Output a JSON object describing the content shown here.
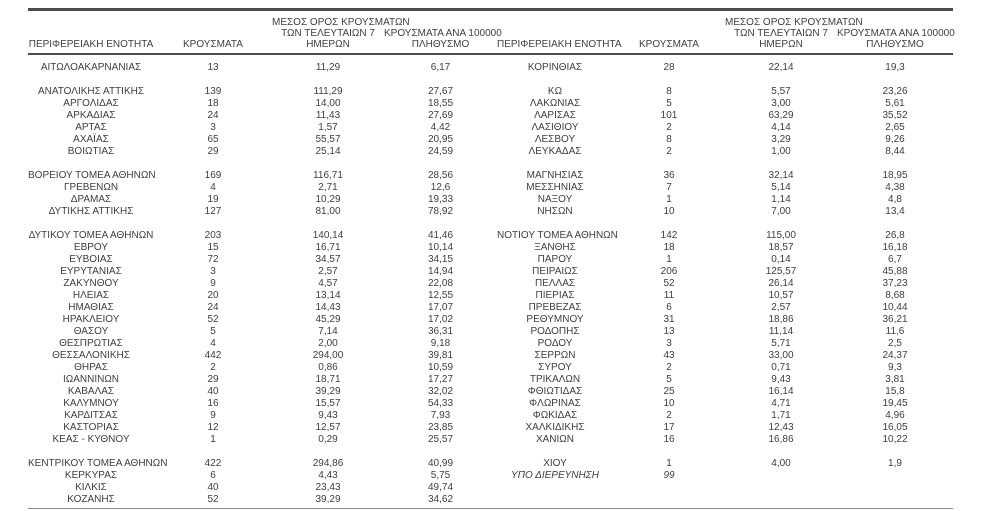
{
  "colors": {
    "text": "#3e3e3e",
    "rule": "#4b4b4b"
  },
  "table": {
    "column_headers": {
      "region": "ΠΕΡΙΦΕΡΕΙΑΚΗ ΕΝΟΤΗΤΑ",
      "cases": "ΚΡΟΥΣΜΑΤΑ",
      "avg7_lines": [
        "ΜΕΣΟΣ ΟΡΟΣ ΚΡΟΥΣΜΑΤΩΝ",
        "ΤΩΝ ΤΕΛΕΥΤΑΙΩΝ 7",
        "ΗΜΕΡΩΝ"
      ],
      "per100k_lines": [
        "ΚΡΟΥΣΜΑΤΑ ΑΝΑ 100000",
        "ΠΛΗΘΥΣΜΟ"
      ]
    },
    "rows": [
      {
        "left": [
          "ΑΙΤΩΛΟΑΚΑΡΝΑΝΙΑΣ",
          "13",
          "11,29",
          "6,17"
        ],
        "right": [
          "ΚΟΡΙΝΘΙΑΣ",
          "28",
          "22,14",
          "19,3"
        ]
      },
      {
        "separator": true
      },
      {
        "left": [
          "ΑΝΑΤΟΛΙΚΗΣ ΑΤΤΙΚΗΣ",
          "139",
          "111,29",
          "27,67"
        ],
        "right": [
          "ΚΩ",
          "8",
          "5,57",
          "23,26"
        ]
      },
      {
        "left": [
          "ΑΡΓΟΛΙΔΑΣ",
          "18",
          "14,00",
          "18,55"
        ],
        "right": [
          "ΛΑΚΩΝΙΑΣ",
          "5",
          "3,00",
          "5,61"
        ]
      },
      {
        "left": [
          "ΑΡΚΑΔΙΑΣ",
          "24",
          "11,43",
          "27,69"
        ],
        "right": [
          "ΛΑΡΙΣΑΣ",
          "101",
          "63,29",
          "35,52"
        ]
      },
      {
        "left": [
          "ΑΡΤΑΣ",
          "3",
          "1,57",
          "4,42"
        ],
        "right": [
          "ΛΑΣΙΘΙΟΥ",
          "2",
          "4,14",
          "2,65"
        ]
      },
      {
        "left": [
          "ΑΧΑΪΑΣ",
          "65",
          "55,57",
          "20,95"
        ],
        "right": [
          "ΛΕΣΒΟΥ",
          "8",
          "3,29",
          "9,26"
        ]
      },
      {
        "left": [
          "ΒΟΙΩΤΙΑΣ",
          "29",
          "25,14",
          "24,59"
        ],
        "right": [
          "ΛΕΥΚΑΔΑΣ",
          "2",
          "1,00",
          "8,44"
        ]
      },
      {
        "separator": true
      },
      {
        "left": [
          "ΒΟΡΕΙΟΥ ΤΟΜΕΑ ΑΘΗΝΩΝ",
          "169",
          "116,71",
          "28,56"
        ],
        "right": [
          "ΜΑΓΝΗΣΙΑΣ",
          "36",
          "32,14",
          "18,95"
        ]
      },
      {
        "left": [
          "ΓΡΕΒΕΝΩΝ",
          "4",
          "2,71",
          "12,6"
        ],
        "right": [
          "ΜΕΣΣΗΝΙΑΣ",
          "7",
          "5,14",
          "4,38"
        ]
      },
      {
        "left": [
          "ΔΡΑΜΑΣ",
          "19",
          "10,29",
          "19,33"
        ],
        "right": [
          "ΝΑΞΟΥ",
          "1",
          "1,14",
          "4,8"
        ]
      },
      {
        "left": [
          "ΔΥΤΙΚΗΣ ΑΤΤΙΚΗΣ",
          "127",
          "81,00",
          "78,92"
        ],
        "right": [
          "ΝΗΣΩΝ",
          "10",
          "7,00",
          "13,4"
        ]
      },
      {
        "separator": true
      },
      {
        "left": [
          "ΔΥΤΙΚΟΥ ΤΟΜΕΑ ΑΘΗΝΩΝ",
          "203",
          "140,14",
          "41,46"
        ],
        "right": [
          "ΝΟΤΙΟΥ ΤΟΜΕΑ ΑΘΗΝΩΝ",
          "142",
          "115,00",
          "26,8"
        ]
      },
      {
        "left": [
          "ΕΒΡΟΥ",
          "15",
          "16,71",
          "10,14"
        ],
        "right": [
          "ΞΑΝΘΗΣ",
          "18",
          "18,57",
          "16,18"
        ]
      },
      {
        "left": [
          "ΕΥΒΟΙΑΣ",
          "72",
          "34,57",
          "34,15"
        ],
        "right": [
          "ΠΑΡΟΥ",
          "1",
          "0,14",
          "6,7"
        ]
      },
      {
        "left": [
          "ΕΥΡΥΤΑΝΙΑΣ",
          "3",
          "2,57",
          "14,94"
        ],
        "right": [
          "ΠΕΙΡΑΙΩΣ",
          "206",
          "125,57",
          "45,88"
        ]
      },
      {
        "left": [
          "ΖΑΚΥΝΘΟΥ",
          "9",
          "4,57",
          "22,08"
        ],
        "right": [
          "ΠΕΛΛΑΣ",
          "52",
          "26,14",
          "37,23"
        ]
      },
      {
        "left": [
          "ΗΛΕΙΑΣ",
          "20",
          "13,14",
          "12,55"
        ],
        "right": [
          "ΠΙΕΡΙΑΣ",
          "11",
          "10,57",
          "8,68"
        ]
      },
      {
        "left": [
          "ΗΜΑΘΙΑΣ",
          "24",
          "14,43",
          "17,07"
        ],
        "right": [
          "ΠΡΕΒΕΖΑΣ",
          "6",
          "2,57",
          "10,44"
        ]
      },
      {
        "left": [
          "ΗΡΑΚΛΕΙΟΥ",
          "52",
          "45,29",
          "17,02"
        ],
        "right": [
          "ΡΕΘΥΜΝΟΥ",
          "31",
          "18,86",
          "36,21"
        ]
      },
      {
        "left": [
          "ΘΑΣΟΥ",
          "5",
          "7,14",
          "36,31"
        ],
        "right": [
          "ΡΟΔΟΠΗΣ",
          "13",
          "11,14",
          "11,6"
        ]
      },
      {
        "left": [
          "ΘΕΣΠΡΩΤΙΑΣ",
          "4",
          "2,00",
          "9,18"
        ],
        "right": [
          "ΡΟΔΟΥ",
          "3",
          "5,71",
          "2,5"
        ]
      },
      {
        "left": [
          "ΘΕΣΣΑΛΟΝΙΚΗΣ",
          "442",
          "294,00",
          "39,81"
        ],
        "right": [
          "ΣΕΡΡΩΝ",
          "43",
          "33,00",
          "24,37"
        ]
      },
      {
        "left": [
          "ΘΗΡΑΣ",
          "2",
          "0,86",
          "10,59"
        ],
        "right": [
          "ΣΥΡΟΥ",
          "2",
          "0,71",
          "9,3"
        ]
      },
      {
        "left": [
          "ΙΩΑΝΝΙΝΩΝ",
          "29",
          "18,71",
          "17,27"
        ],
        "right": [
          "ΤΡΙΚΑΛΩΝ",
          "5",
          "9,43",
          "3,81"
        ]
      },
      {
        "left": [
          "ΚΑΒΑΛΑΣ",
          "40",
          "39,29",
          "32,02"
        ],
        "right": [
          "ΦΘΙΩΤΙΔΑΣ",
          "25",
          "16,14",
          "15,8"
        ]
      },
      {
        "left": [
          "ΚΑΛΥΜΝΟΥ",
          "16",
          "15,57",
          "54,33"
        ],
        "right": [
          "ΦΛΩΡΙΝΑΣ",
          "10",
          "4,71",
          "19,45"
        ]
      },
      {
        "left": [
          "ΚΑΡΔΙΤΣΑΣ",
          "9",
          "9,43",
          "7,93"
        ],
        "right": [
          "ΦΩΚΙΔΑΣ",
          "2",
          "1,71",
          "4,96"
        ]
      },
      {
        "left": [
          "ΚΑΣΤΟΡΙΑΣ",
          "12",
          "12,57",
          "23,85"
        ],
        "right": [
          "ΧΑΛΚΙΔΙΚΗΣ",
          "17",
          "12,43",
          "16,05"
        ]
      },
      {
        "left": [
          "ΚΕΑΣ - ΚΥΘΝΟΥ",
          "1",
          "0,29",
          "25,57"
        ],
        "right": [
          "ΧΑΝΙΩΝ",
          "16",
          "16,86",
          "10,22"
        ]
      },
      {
        "separator": true
      },
      {
        "left": [
          "ΚΕΝΤΡΙΚΟΥ ΤΟΜΕΑ ΑΘΗΝΩΝ",
          "422",
          "294,86",
          "40,99"
        ],
        "right": [
          "ΧΙΟΥ",
          "1",
          "4,00",
          "1,9"
        ]
      },
      {
        "left": [
          "ΚΕΡΚΥΡΑΣ",
          "6",
          "4,43",
          "5,75"
        ],
        "right": [
          "ΥΠΟ ΔΙΕΡΕΥΝΗΣΗ",
          "99",
          "",
          ""
        ],
        "right_italic": true
      },
      {
        "left": [
          "ΚΙΛΚΙΣ",
          "40",
          "23,43",
          "49,74"
        ],
        "right": [
          "",
          "",
          "",
          ""
        ]
      },
      {
        "left": [
          "ΚΟΖΑΝΗΣ",
          "52",
          "39,29",
          "34,62"
        ],
        "right": [
          "",
          "",
          "",
          ""
        ]
      }
    ]
  }
}
